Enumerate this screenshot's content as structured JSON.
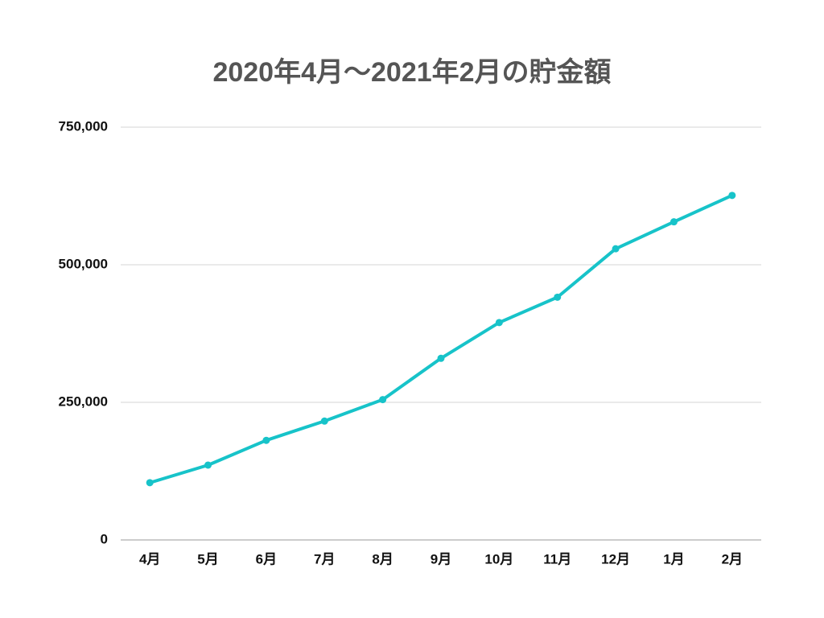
{
  "chart_data": {
    "type": "line",
    "title": "2020年4月〜2021年2月の貯金額",
    "categories": [
      "4月",
      "5月",
      "6月",
      "7月",
      "8月",
      "9月",
      "10月",
      "11月",
      "12月",
      "1月",
      "2月"
    ],
    "series": [
      {
        "name": null,
        "color": "#17c3c9",
        "values": [
          104000,
          136000,
          181000,
          216000,
          255000,
          330000,
          395000,
          441000,
          529000,
          578000,
          626000
        ]
      }
    ],
    "ylim": [
      0,
      750000
    ],
    "yticks": [
      0,
      {
        "value": 250000,
        "label": "250,000"
      },
      {
        "value": 500000,
        "label": "500,000"
      },
      {
        "value": 750000,
        "label": "750,000"
      }
    ],
    "grid": true
  }
}
